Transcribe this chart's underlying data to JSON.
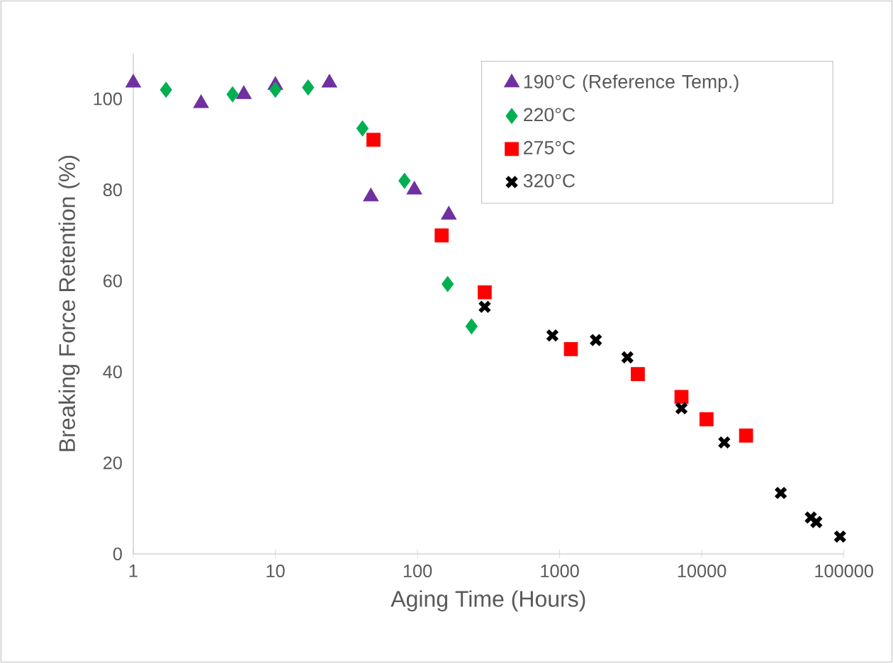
{
  "chart_data": {
    "type": "scatter",
    "xlabel": "Aging Time (Hours)",
    "ylabel": "Breaking Force Retention (%)",
    "log": "x",
    "xlim": [
      1,
      100000
    ],
    "xticks": [
      1,
      10,
      100,
      1000,
      10000,
      100000
    ],
    "ylim": [
      0,
      110
    ],
    "yticks": [
      0,
      20,
      40,
      60,
      80,
      100
    ],
    "grid": false,
    "legend": "top right",
    "series": [
      {
        "name": "190°C (Reference Temp.)",
        "color": "#7030a0",
        "marker": "triangle",
        "x": [
          1,
          3,
          6,
          10,
          24,
          47,
          95,
          166
        ],
        "values": [
          103.5,
          99,
          101,
          103,
          103.5,
          78.5,
          80,
          74.5
        ]
      },
      {
        "name": "220°C",
        "color": "#00b050",
        "marker": "diamond",
        "x": [
          1.7,
          5,
          10,
          17,
          41,
          81,
          163,
          240
        ],
        "values": [
          102,
          101,
          102,
          102.5,
          93.5,
          82,
          59.3,
          50
        ]
      },
      {
        "name": "275°C",
        "color": "#ff0000",
        "marker": "square",
        "x": [
          49,
          148,
          297,
          1200,
          3550,
          7200,
          10800,
          20500
        ],
        "values": [
          91,
          70,
          57.5,
          45,
          39.5,
          34.5,
          29.6,
          26
        ]
      },
      {
        "name": "320°C",
        "color": "#000000",
        "marker": "cross",
        "x": [
          297,
          890,
          1800,
          3000,
          7200,
          14400,
          36000,
          58500,
          64000,
          94000
        ],
        "values": [
          54.3,
          48,
          47,
          43.2,
          32,
          24.5,
          13.4,
          8,
          7,
          3.8
        ]
      }
    ]
  }
}
